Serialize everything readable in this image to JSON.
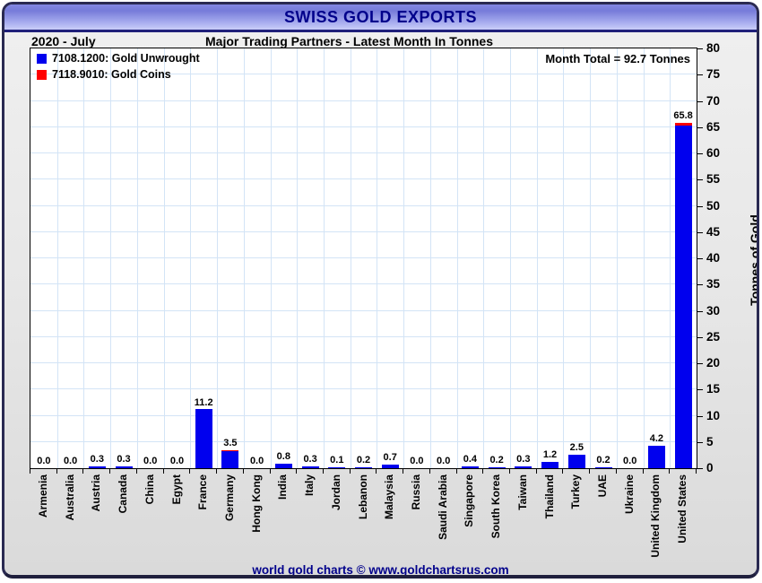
{
  "title_bar": {
    "title": "SWISS GOLD EXPORTS"
  },
  "header": {
    "period": "2020 - July",
    "subtitle": "Major Trading Partners - Latest Month In Tonnes"
  },
  "legend": {
    "items": [
      {
        "label": "7108.1200: Gold Unwrought",
        "color": "#0000ee"
      },
      {
        "label": "7118.9010: Gold Coins",
        "color": "#ff0000"
      }
    ]
  },
  "month_total": "Month Total = 92.7 Tonnes",
  "footer": "world gold charts © www.goldchartsrus.com",
  "colors": {
    "unwrought": "#0000ee",
    "coins": "#ff0000",
    "grid": "#d3e4f6",
    "navy_text": "#00008b"
  },
  "chart_data": {
    "type": "bar",
    "stacked": true,
    "title": "SWISS GOLD EXPORTS",
    "subtitle": "Major Trading Partners - Latest Month In Tonnes",
    "period": "2020 - July",
    "ylabel": "Tonnes of Gold",
    "ylim": [
      0,
      80
    ],
    "ytick_step": 5,
    "grid": true,
    "legend_position": "top-left",
    "annotation": "Month Total = 92.7 Tonnes",
    "categories": [
      "Armenia",
      "Australia",
      "Austria",
      "Canada",
      "China",
      "Egypt",
      "France",
      "Germany",
      "Hong Kong",
      "India",
      "Italy",
      "Jordan",
      "Lebanon",
      "Malaysia",
      "Russia",
      "Saudi Arabia",
      "Singapore",
      "South Korea",
      "Taiwan",
      "Thailand",
      "Turkey",
      "UAE",
      "Ukraine",
      "United Kingdom",
      "United States"
    ],
    "totals": [
      0.0,
      0.0,
      0.3,
      0.3,
      0.0,
      0.0,
      11.2,
      3.5,
      0.0,
      0.8,
      0.3,
      0.1,
      0.2,
      0.7,
      0.0,
      0.0,
      0.4,
      0.2,
      0.3,
      1.2,
      2.5,
      0.2,
      0.0,
      4.2,
      65.8
    ],
    "bar_labels": [
      "0.0",
      "0.0",
      "0.3",
      "0.3",
      "0.0",
      "0.0",
      "11.2",
      "3.5",
      "0.0",
      "0.8",
      "0.3",
      "0.1",
      "0.2",
      "0.7",
      "0.0",
      "0.0",
      "0.4",
      "0.2",
      "0.3",
      "1.2",
      "2.5",
      "0.2",
      "0.0",
      "4.2",
      "65.8"
    ],
    "series": [
      {
        "name": "7108.1200: Gold Unwrought",
        "color": "#0000ee",
        "values": [
          0.0,
          0.0,
          0.3,
          0.3,
          0.0,
          0.0,
          11.2,
          3.3,
          0.0,
          0.8,
          0.3,
          0.1,
          0.2,
          0.7,
          0.0,
          0.0,
          0.4,
          0.2,
          0.3,
          1.2,
          2.5,
          0.2,
          0.0,
          4.2,
          65.3
        ]
      },
      {
        "name": "7118.9010: Gold Coins",
        "color": "#ff0000",
        "values": [
          0,
          0,
          0,
          0,
          0,
          0,
          0,
          0.2,
          0,
          0,
          0,
          0,
          0,
          0,
          0,
          0,
          0,
          0,
          0,
          0,
          0,
          0,
          0,
          0,
          0.5
        ]
      }
    ]
  }
}
